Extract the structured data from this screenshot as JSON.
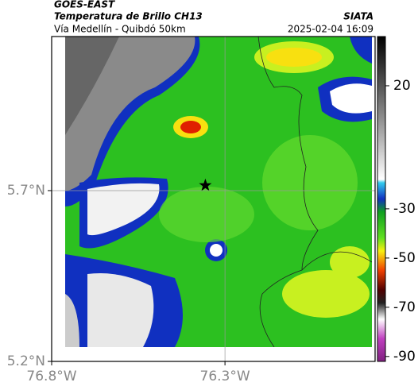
{
  "header": {
    "source": "GOES-EAST",
    "title": "Temperatura de Brillo CH13",
    "org": "SIATA",
    "subtitle": "Vía Medellín - Quibdó 50km",
    "datetime": "2025-02-04 16:09"
  },
  "map": {
    "xlim": [
      -76.8,
      -75.867
    ],
    "ylim": [
      5.2,
      6.151
    ],
    "xticks": [
      {
        "value": -76.8,
        "label": "76.8°W"
      },
      {
        "value": -76.3,
        "label": "76.3°W"
      }
    ],
    "yticks": [
      {
        "value": 5.7,
        "label": "5.7°N"
      },
      {
        "value": 5.2,
        "label": "5.2°N"
      }
    ],
    "grid": true
  },
  "colorbar": {
    "lim": [
      -92,
      40
    ],
    "ticks": [
      20,
      -30,
      -50,
      -70,
      -90
    ]
  }
}
